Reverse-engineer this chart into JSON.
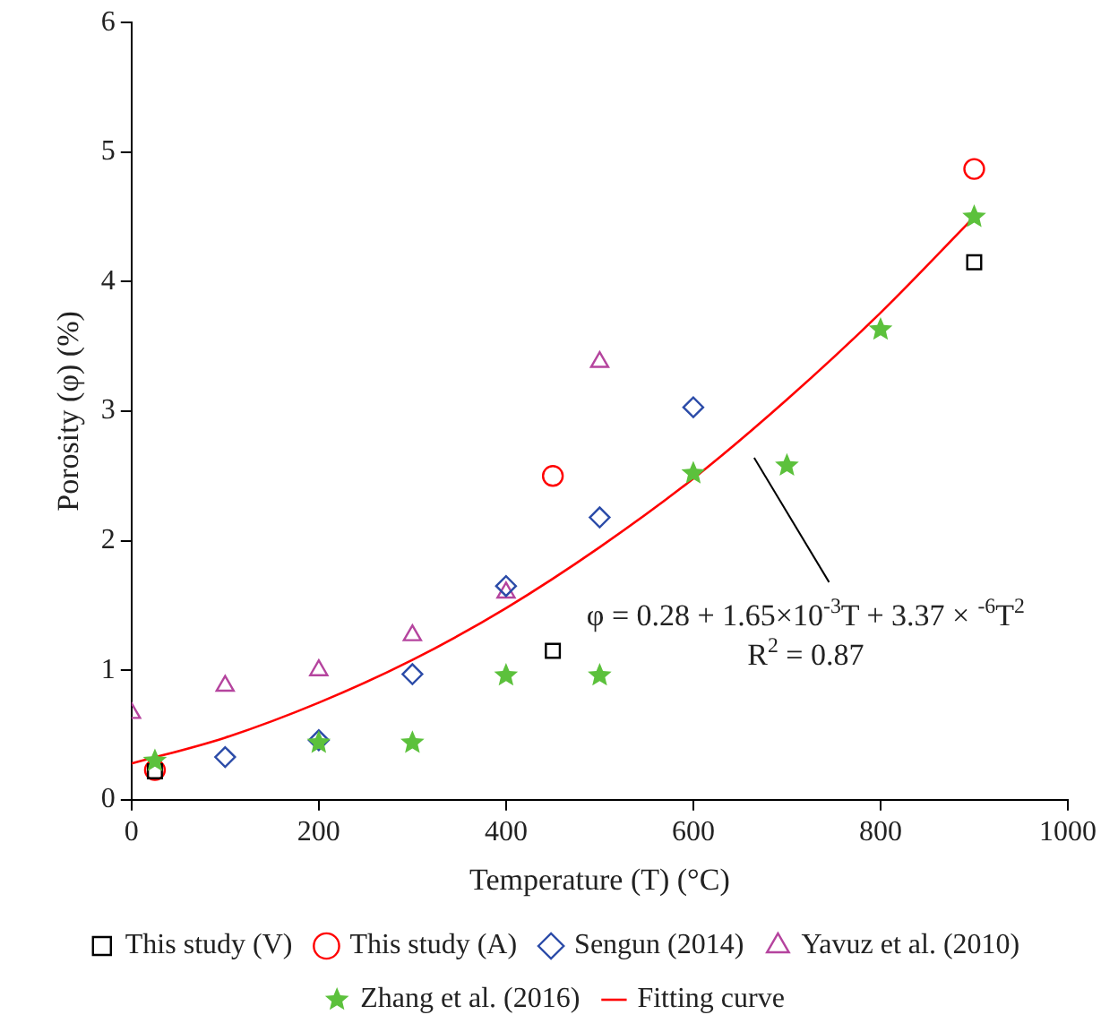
{
  "chart_data": {
    "type": "scatter",
    "xlabel": "Temperature (T) (°C)",
    "ylabel": "Porosity (φ) (%)",
    "xlim": [
      0,
      1000
    ],
    "xticks": [
      0,
      200,
      400,
      600,
      800,
      1000
    ],
    "ylim": [
      0,
      6
    ],
    "yticks": [
      0,
      1,
      2,
      3,
      4,
      5,
      6
    ],
    "grid": false,
    "legend": "bottom",
    "series": [
      {
        "name": "This study (V)",
        "color": "#000000",
        "marker": "square",
        "x": [
          25,
          450,
          900
        ],
        "values": [
          0.22,
          1.15,
          4.15
        ]
      },
      {
        "name": "This study (A)",
        "color": "#ff0000",
        "marker": "circle",
        "x": [
          25,
          450,
          900
        ],
        "values": [
          0.23,
          2.5,
          4.87
        ]
      },
      {
        "name": "Sengun (2014)",
        "color": "#2b4ba8",
        "marker": "diamond",
        "x": [
          100,
          200,
          300,
          400,
          500,
          600
        ],
        "values": [
          0.33,
          0.46,
          0.97,
          1.65,
          2.18,
          3.03
        ]
      },
      {
        "name": "Yavuz et al. (2010)",
        "color": "#b5449e",
        "marker": "triangle",
        "x": [
          0,
          100,
          200,
          300,
          400,
          500
        ],
        "values": [
          0.67,
          0.88,
          1.0,
          1.27,
          1.6,
          3.38
        ]
      },
      {
        "name": "Zhang et al. (2016)",
        "color": "#5cc13c",
        "marker": "star",
        "x": [
          25,
          200,
          300,
          400,
          500,
          600,
          700,
          800,
          900
        ],
        "values": [
          0.3,
          0.44,
          0.44,
          0.96,
          0.96,
          2.52,
          2.58,
          3.63,
          4.5
        ]
      },
      {
        "name": "Fitting curve",
        "type": "line",
        "color": "#ff0000",
        "marker": "none",
        "x": [
          0,
          100,
          200,
          300,
          400,
          500,
          600,
          700,
          800,
          900
        ],
        "values": [
          0.28,
          0.48,
          0.75,
          1.08,
          1.48,
          1.95,
          2.48,
          3.09,
          3.76,
          4.5
        ]
      }
    ],
    "annotations": [
      "φ = 0.28 + 1.65×10$^{-3}$T + 3.37 × $^{-6}$T$^{2}$",
      "R$^{2}$ = 0.87"
    ]
  }
}
